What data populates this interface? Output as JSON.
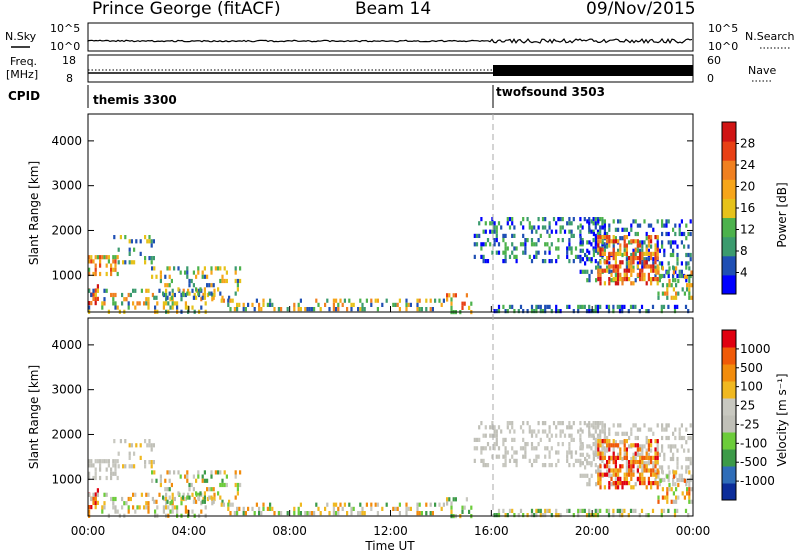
{
  "header": {
    "station": "Prince George (fitACF)",
    "beam": "Beam 14",
    "date": "09/Nov/2015"
  },
  "status_panels": {
    "left_labels": {
      "nsky": "N.Sky",
      "freq_line1": "Freq.",
      "freq_line2": "[MHz]",
      "cpid": "CPID"
    },
    "right_labels": {
      "nsearch": "N.Search",
      "nave": "Nave"
    },
    "nsky_ticks": [
      "10^5",
      "10^0"
    ],
    "nsearch_ticks": [
      "10^5",
      "10^0"
    ],
    "freq_ticks": [
      "18",
      "8"
    ],
    "nave_ticks": [
      "60",
      "0"
    ],
    "cpid_segments": [
      {
        "name": "themis 3300",
        "start_hour": 0
      },
      {
        "name": "twofsound 3503",
        "start_hour": 16
      }
    ]
  },
  "chart_data": [
    {
      "type": "heatmap",
      "panel": "power",
      "ylabel": "Slant Range [km]",
      "yticks": [
        1000,
        2000,
        3000,
        4000
      ],
      "ylim": [
        180,
        4600
      ],
      "xlim": [
        0,
        24
      ],
      "colorbar": {
        "label": "Power [dB]",
        "ticks": [
          "28",
          "24",
          "20",
          "16",
          "12",
          "8",
          "4"
        ]
      }
    },
    {
      "type": "heatmap",
      "panel": "velocity",
      "ylabel": "Slant Range [km]",
      "yticks": [
        1000,
        2000,
        3000,
        4000
      ],
      "ylim": [
        180,
        4600
      ],
      "xlim": [
        0,
        24
      ],
      "xlabel": "Time UT",
      "xticks": [
        "00:00",
        "04:00",
        "08:00",
        "12:00",
        "16:00",
        "20:00",
        "00:00"
      ],
      "colorbar": {
        "label": "Velocity [m s⁻¹]",
        "ticks": [
          "1000",
          "500",
          "100",
          "25",
          "-25",
          "-100",
          "-500",
          "-1000"
        ]
      }
    }
  ],
  "colors": {
    "power_scale": [
      "#0000ff",
      "#1f4fb4",
      "#3b9b6e",
      "#4cb24c",
      "#e6c21a",
      "#f6a51a",
      "#f08020",
      "#e84015",
      "#d01414"
    ],
    "velocity_scale": [
      "#0c2d9a",
      "#2f6db8",
      "#3c9a48",
      "#6ccc3a",
      "#c0c0b8",
      "#c8c8c0",
      "#f0b820",
      "#f28c0c",
      "#f05a08",
      "#e00010"
    ]
  }
}
